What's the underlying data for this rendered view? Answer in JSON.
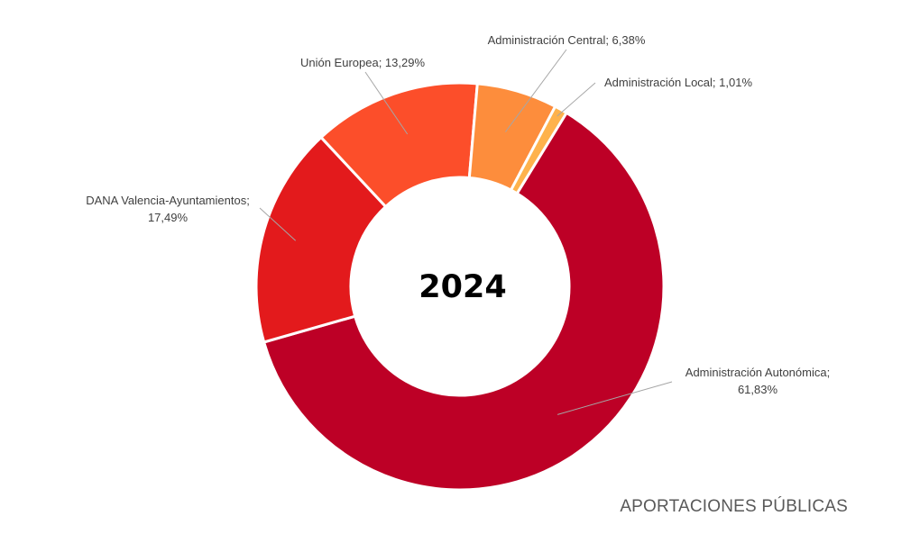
{
  "chart_data": {
    "type": "pie",
    "variant": "donut",
    "center_label": "2024",
    "title": "APORTACIONES PÚBLICAS",
    "title_position": "bottom-right",
    "legend": "none",
    "slices": [
      {
        "label": "Administración Autonómica",
        "value": 61.83,
        "display": "61,83%",
        "color": "#bd0026"
      },
      {
        "label": "DANA Valencia-Ayuntamientos",
        "value": 17.49,
        "display": "17,49%",
        "color": "#e31a1c"
      },
      {
        "label": "Unión Europea",
        "value": 13.29,
        "display": "13,29%",
        "color": "#fc4e2a"
      },
      {
        "label": "Administración Central",
        "value": 6.38,
        "display": "6,38%",
        "color": "#fd8d3c"
      },
      {
        "label": "Administración Local",
        "value": 1.01,
        "display": "1,01%",
        "color": "#feb24c"
      }
    ]
  }
}
